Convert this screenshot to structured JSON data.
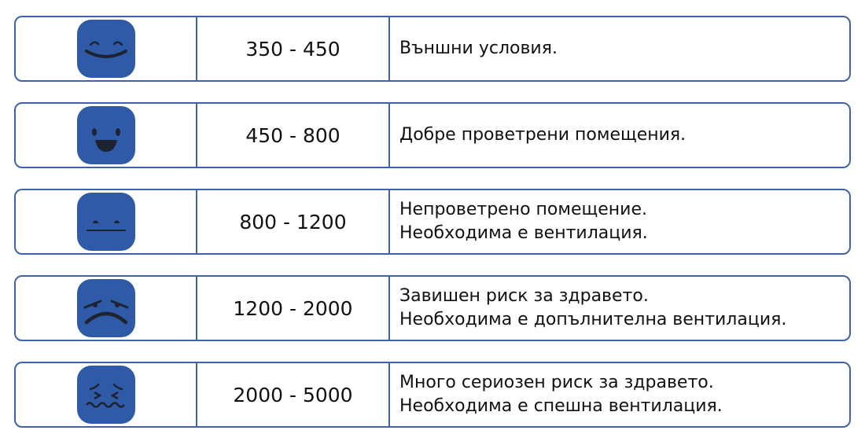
{
  "colors": {
    "border": "#3f63aa",
    "face": "#2f5aa8",
    "feature": "#1e2330"
  },
  "rows": [
    {
      "icon": "smiling-closed-eyes-face-icon",
      "range": "350 - 450",
      "lines": [
        "Външни условия."
      ]
    },
    {
      "icon": "happy-face-icon",
      "range": "450 - 800",
      "lines": [
        "Добре проветрени помещения."
      ]
    },
    {
      "icon": "neutral-face-icon",
      "range": "800 - 1200",
      "lines": [
        "Непроветрено помещение.",
        "Необходима е вентилация."
      ]
    },
    {
      "icon": "worried-face-icon",
      "range": "1200 - 2000",
      "lines": [
        "Завишен риск за здравето.",
        "Необходима е допълнителна вентилация."
      ]
    },
    {
      "icon": "sick-face-icon",
      "range": "2000 - 5000",
      "lines": [
        "Много сериозен риск за здравето.",
        "Необходима е спешна вентилация."
      ]
    }
  ]
}
